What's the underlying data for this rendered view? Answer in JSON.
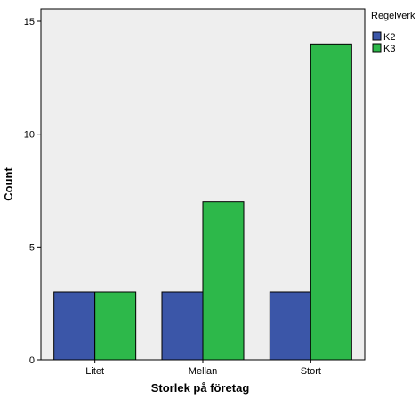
{
  "chart_data": {
    "type": "bar",
    "categories": [
      "Litet",
      "Mellan",
      "Stort"
    ],
    "series": [
      {
        "name": "K2",
        "values": [
          3,
          3,
          3
        ],
        "color": "#3b56a8"
      },
      {
        "name": "K3",
        "values": [
          3,
          7,
          14
        ],
        "color": "#2db84a"
      }
    ],
    "xlabel": "Storlek på företag",
    "ylabel": "Count",
    "ylim": [
      0,
      15
    ],
    "yticks": [
      0,
      5,
      10,
      15
    ],
    "grid": false,
    "legend": {
      "title": "Regelverk",
      "position": "top-right"
    },
    "plot_background": "#eeeeee"
  }
}
